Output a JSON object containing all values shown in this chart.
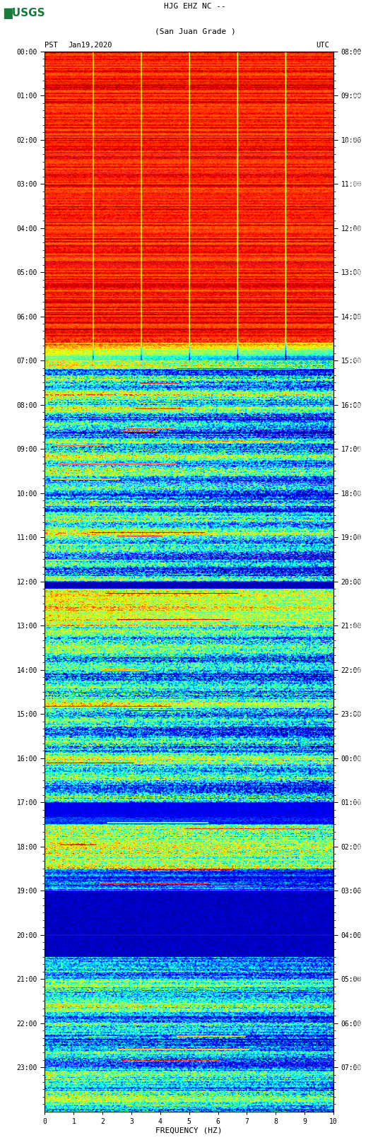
{
  "title_line1": "HJG EHZ NC --",
  "title_line2": "(San Juan Grade )",
  "date_label": "Jan19,2020",
  "pst_label": "PST",
  "utc_label": "UTC",
  "freq_label": "FREQUENCY (HZ)",
  "freq_ticks": [
    0,
    1,
    2,
    3,
    4,
    5,
    6,
    7,
    8,
    9,
    10
  ],
  "pst_times": [
    "00:00",
    "01:00",
    "02:00",
    "03:00",
    "04:00",
    "05:00",
    "06:00",
    "07:00",
    "08:00",
    "09:00",
    "10:00",
    "11:00",
    "12:00",
    "13:00",
    "14:00",
    "15:00",
    "16:00",
    "17:00",
    "18:00",
    "19:00",
    "20:00",
    "21:00",
    "22:00",
    "23:00"
  ],
  "utc_times": [
    "08:00",
    "09:00",
    "10:00",
    "11:00",
    "12:00",
    "13:00",
    "14:00",
    "15:00",
    "16:00",
    "17:00",
    "18:00",
    "19:00",
    "20:00",
    "21:00",
    "22:00",
    "23:00",
    "00:00",
    "01:00",
    "02:00",
    "03:00",
    "04:00",
    "05:00",
    "06:00",
    "07:00"
  ],
  "fig_width": 5.52,
  "fig_height": 16.13,
  "bg_color": "#ffffff",
  "usgs_green": "#1a7a3c",
  "waveform_bg": "#000000",
  "waveform_color": "#ffffff",
  "title_color": "#000000",
  "label_color": "#000000"
}
